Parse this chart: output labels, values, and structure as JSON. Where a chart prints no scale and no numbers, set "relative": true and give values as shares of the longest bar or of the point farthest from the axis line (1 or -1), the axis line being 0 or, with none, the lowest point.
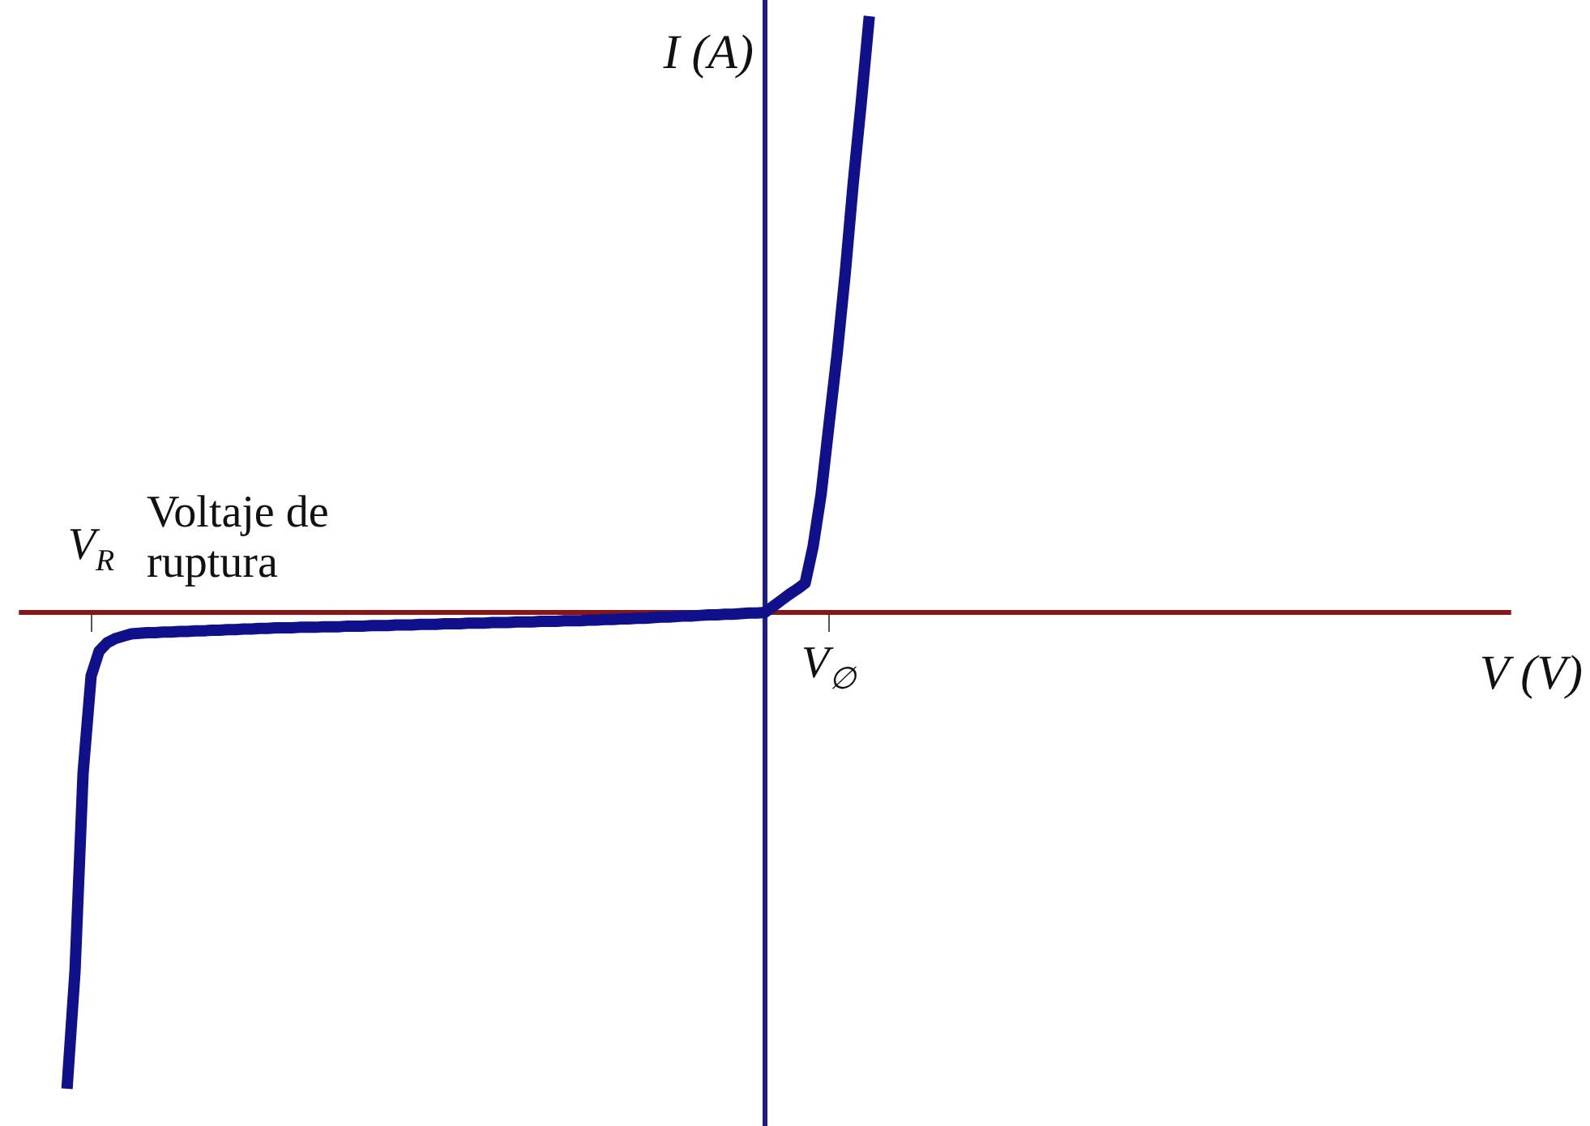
{
  "chart_data": {
    "type": "line",
    "xlabel": "V (V)",
    "ylabel": "I (A)",
    "annotations": [
      "Voltaje de ruptura"
    ],
    "categories": [
      null,
      null,
      null,
      null,
      null,
      null,
      null,
      null,
      null,
      "V$_{R}$",
      null,
      null,
      null,
      null,
      null,
      null,
      null,
      null,
      null,
      null,
      null,
      null,
      null,
      null,
      null,
      null,
      null,
      null,
      null,
      null,
      null,
      null,
      null,
      null,
      null,
      null,
      null,
      null,
      null,
      null,
      null,
      null,
      null,
      null,
      null,
      null,
      null,
      null,
      null,
      null,
      null,
      null,
      null,
      null,
      null,
      null,
      null,
      null,
      null,
      null,
      null,
      null,
      null,
      null,
      null,
      null,
      null,
      null,
      null,
      null,
      null,
      null,
      null,
      null,
      null,
      null,
      null,
      null,
      null,
      null,
      null,
      null,
      null,
      null,
      null,
      null,
      null,
      null,
      null,
      null,
      null,
      null,
      null,
      null,
      null,
      null,
      null,
      null,
      null,
      null,
      null,
      "V$_{∅}$",
      null,
      null,
      null,
      null,
      null,
      null,
      null,
      null,
      null,
      null,
      null,
      null,
      null,
      null,
      null,
      null,
      null,
      null,
      null,
      null,
      null,
      null,
      null,
      null,
      null,
      null,
      null,
      null,
      null,
      null,
      null,
      null,
      null,
      null,
      null,
      null,
      null,
      null,
      null,
      null,
      null,
      null,
      null,
      null,
      null,
      null,
      null,
      null,
      null,
      null,
      null,
      null,
      null,
      null,
      null,
      null,
      null,
      null,
      null,
      null,
      null,
      null,
      null,
      null,
      null,
      null,
      null,
      null,
      null,
      null,
      null,
      null,
      null,
      null,
      null,
      null,
      null,
      null,
      null,
      null,
      null,
      null,
      null,
      null,
      null
    ],
    "values": [
      null,
      null,
      null,
      null,
      null,
      null,
      -0.799,
      -0.601,
      -0.27,
      -0.107,
      -0.065,
      -0.051,
      -0.044,
      -0.04,
      -0.036,
      -0.035,
      -0.034,
      -0.034,
      -0.033,
      -0.033,
      -0.032,
      -0.032,
      -0.031,
      -0.031,
      -0.03,
      -0.03,
      -0.029,
      -0.029,
      -0.028,
      -0.028,
      -0.027,
      -0.027,
      -0.026,
      -0.026,
      -0.026,
      -0.025,
      -0.025,
      -0.025,
      -0.024,
      -0.024,
      -0.024,
      -0.023,
      -0.023,
      -0.023,
      -0.022,
      -0.022,
      -0.022,
      -0.021,
      -0.021,
      -0.021,
      -0.02,
      -0.02,
      -0.02,
      -0.019,
      -0.019,
      -0.019,
      -0.018,
      -0.018,
      -0.018,
      -0.017,
      -0.017,
      -0.017,
      -0.016,
      -0.016,
      -0.016,
      -0.015,
      -0.015,
      -0.015,
      -0.014,
      -0.014,
      -0.014,
      -0.013,
      -0.013,
      -0.012,
      -0.012,
      -0.011,
      -0.011,
      -0.01,
      -0.01,
      -0.009,
      -0.008,
      -0.008,
      -0.007,
      -0.006,
      -0.006,
      -0.005,
      -0.004,
      -0.004,
      -0.003,
      -0.003,
      -0.002,
      -0.001,
      -0.001,
      0,
      0.01,
      0.02,
      0.03,
      0.039,
      0.049,
      0.111,
      0.199,
      0.318,
      0.435,
      0.569,
      0.721,
      0.856,
      1,
      null,
      null,
      null,
      null,
      null,
      null,
      null,
      null,
      null,
      null,
      null,
      null,
      null,
      null,
      null,
      null,
      null,
      null,
      null,
      null,
      null,
      null,
      null,
      null,
      null,
      null,
      null,
      null,
      null,
      null,
      null,
      null,
      null,
      null,
      null,
      null,
      null,
      null,
      null,
      null,
      null,
      null,
      null,
      null,
      null,
      null,
      null,
      null,
      null,
      null,
      null,
      null,
      null,
      null,
      null,
      null,
      null,
      null,
      null,
      null,
      null,
      null,
      null,
      null,
      null,
      null,
      null,
      null,
      null,
      null,
      null,
      null,
      null,
      null,
      null,
      null,
      null,
      null,
      null,
      null
    ],
    "color": "#10108a",
    "relative": true,
    "marker": "none",
    "ref_lines": [
      {
        "axis": "y",
        "value": 0,
        "color": "#8b1414"
      }
    ]
  }
}
